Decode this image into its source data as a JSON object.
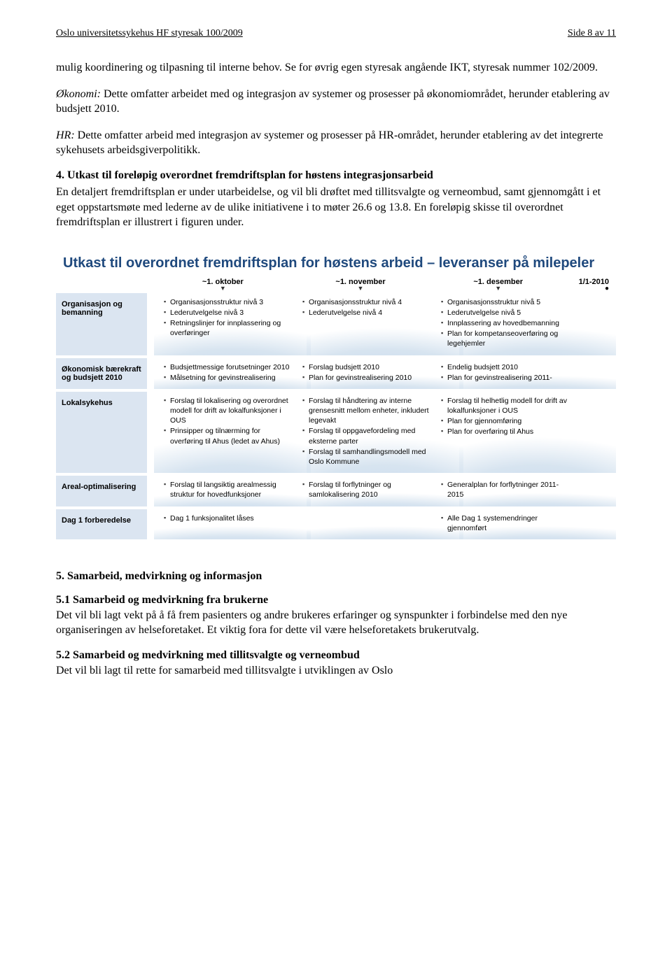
{
  "header": {
    "left": "Oslo universitetssykehus HF styresak 100/2009",
    "right": "Side 8 av 11"
  },
  "paragraphs": {
    "p1": "mulig koordinering og tilpasning til interne behov. Se for øvrig egen styresak angående IKT, styresak nummer 102/2009.",
    "p2_lead": "Økonomi:",
    "p2_rest": " Dette omfatter arbeidet med og integrasjon av systemer og prosesser på økonomiområdet, herunder etablering av budsjett 2010.",
    "p3_lead": "HR:",
    "p3_rest": " Dette omfatter arbeid med integrasjon av systemer og prosesser på HR-området, herunder etablering av det integrerte sykehusets arbeidsgiverpolitikk.",
    "h4": "4. Utkast til foreløpig overordnet fremdriftsplan for høstens integrasjonsarbeid",
    "p4": "En detaljert fremdriftsplan er under utarbeidelse, og vil bli drøftet med tillitsvalgte og verneombud, samt gjennomgått i et eget oppstartsmøte med lederne av de ulike initiativene i to møter 26.6 og 13.8. En foreløpig skisse til overordnet fremdriftsplan er illustrert i figuren under."
  },
  "chart": {
    "title": "Utkast til overordnet fremdriftsplan for høstens arbeid – leveranser på milepeler",
    "timeline": [
      "~1. oktober",
      "~1. november",
      "~1. desember"
    ],
    "timeline_end": "1/1-2010",
    "label_bg": "#dbe5f1",
    "title_color": "#1f497d",
    "rows": [
      {
        "label": "Organisasjon og bemanning",
        "cols": [
          [
            "Organisasjonsstruktur nivå 3",
            "Lederutvelgelse nivå 3",
            "Retningslinjer for innplassering og overføringer"
          ],
          [
            "Organisasjonsstruktur nivå 4",
            "Lederutvelgelse nivå 4"
          ],
          [
            "Organisasjonsstruktur nivå 5",
            "Lederutvelgelse nivå 5",
            "Innplassering av hovedbemanning",
            "Plan for kompetanseoverføring og legehjemler"
          ]
        ]
      },
      {
        "label": "Økonomisk bærekraft og budsjett 2010",
        "cols": [
          [
            "Budsjettmessige forutsetninger 2010",
            "Målsetning for gevinstrealisering"
          ],
          [
            "Forslag budsjett 2010",
            "Plan for gevinstrealisering 2010"
          ],
          [
            "Endelig budsjett 2010",
            "Plan for gevinstrealisering 2011-"
          ]
        ]
      },
      {
        "label": "Lokalsykehus",
        "cols": [
          [
            "Forslag til lokalisering og overordnet modell for drift av lokalfunksjoner i OUS",
            "Prinsipper og tilnærming for overføring til Ahus (ledet av Ahus)"
          ],
          [
            "Forslag til håndtering av interne grensesnitt mellom enheter, inkludert legevakt",
            "Forslag til oppgavefordeling med eksterne parter",
            "Forslag til samhandlingsmodell med Oslo Kommune"
          ],
          [
            "Forslag til helhetlig modell for drift av lokalfunksjoner i OUS",
            "Plan for gjennomføring",
            "Plan for overføring til Ahus"
          ]
        ]
      },
      {
        "label": "Areal-optimalisering",
        "cols": [
          [
            "Forslag til langsiktig arealmessig struktur for hovedfunksjoner"
          ],
          [
            "Forslag til forflytninger og samlokalisering 2010"
          ],
          [
            "Generalplan for forflytninger 2011-2015"
          ]
        ]
      },
      {
        "label": "Dag 1 forberedelse",
        "cols": [
          [
            "Dag 1 funksjonalitet låses"
          ],
          [],
          [
            "Alle Dag 1 systemendringer gjennomført"
          ]
        ]
      }
    ]
  },
  "footer": {
    "h5": "5. Samarbeid, medvirkning og informasjon",
    "h51": "5.1 Samarbeid og medvirkning fra brukerne",
    "p51": "Det vil bli lagt vekt på å få frem pasienters og andre brukeres erfaringer og synspunkter i forbindelse med den nye organiseringen av helseforetaket. Et viktig fora for dette vil være helseforetakets brukerutvalg.",
    "h52": "5.2 Samarbeid og medvirkning med tillitsvalgte og verneombud",
    "p52": "Det vil bli lagt til rette for samarbeid med tillitsvalgte i utviklingen av Oslo"
  }
}
